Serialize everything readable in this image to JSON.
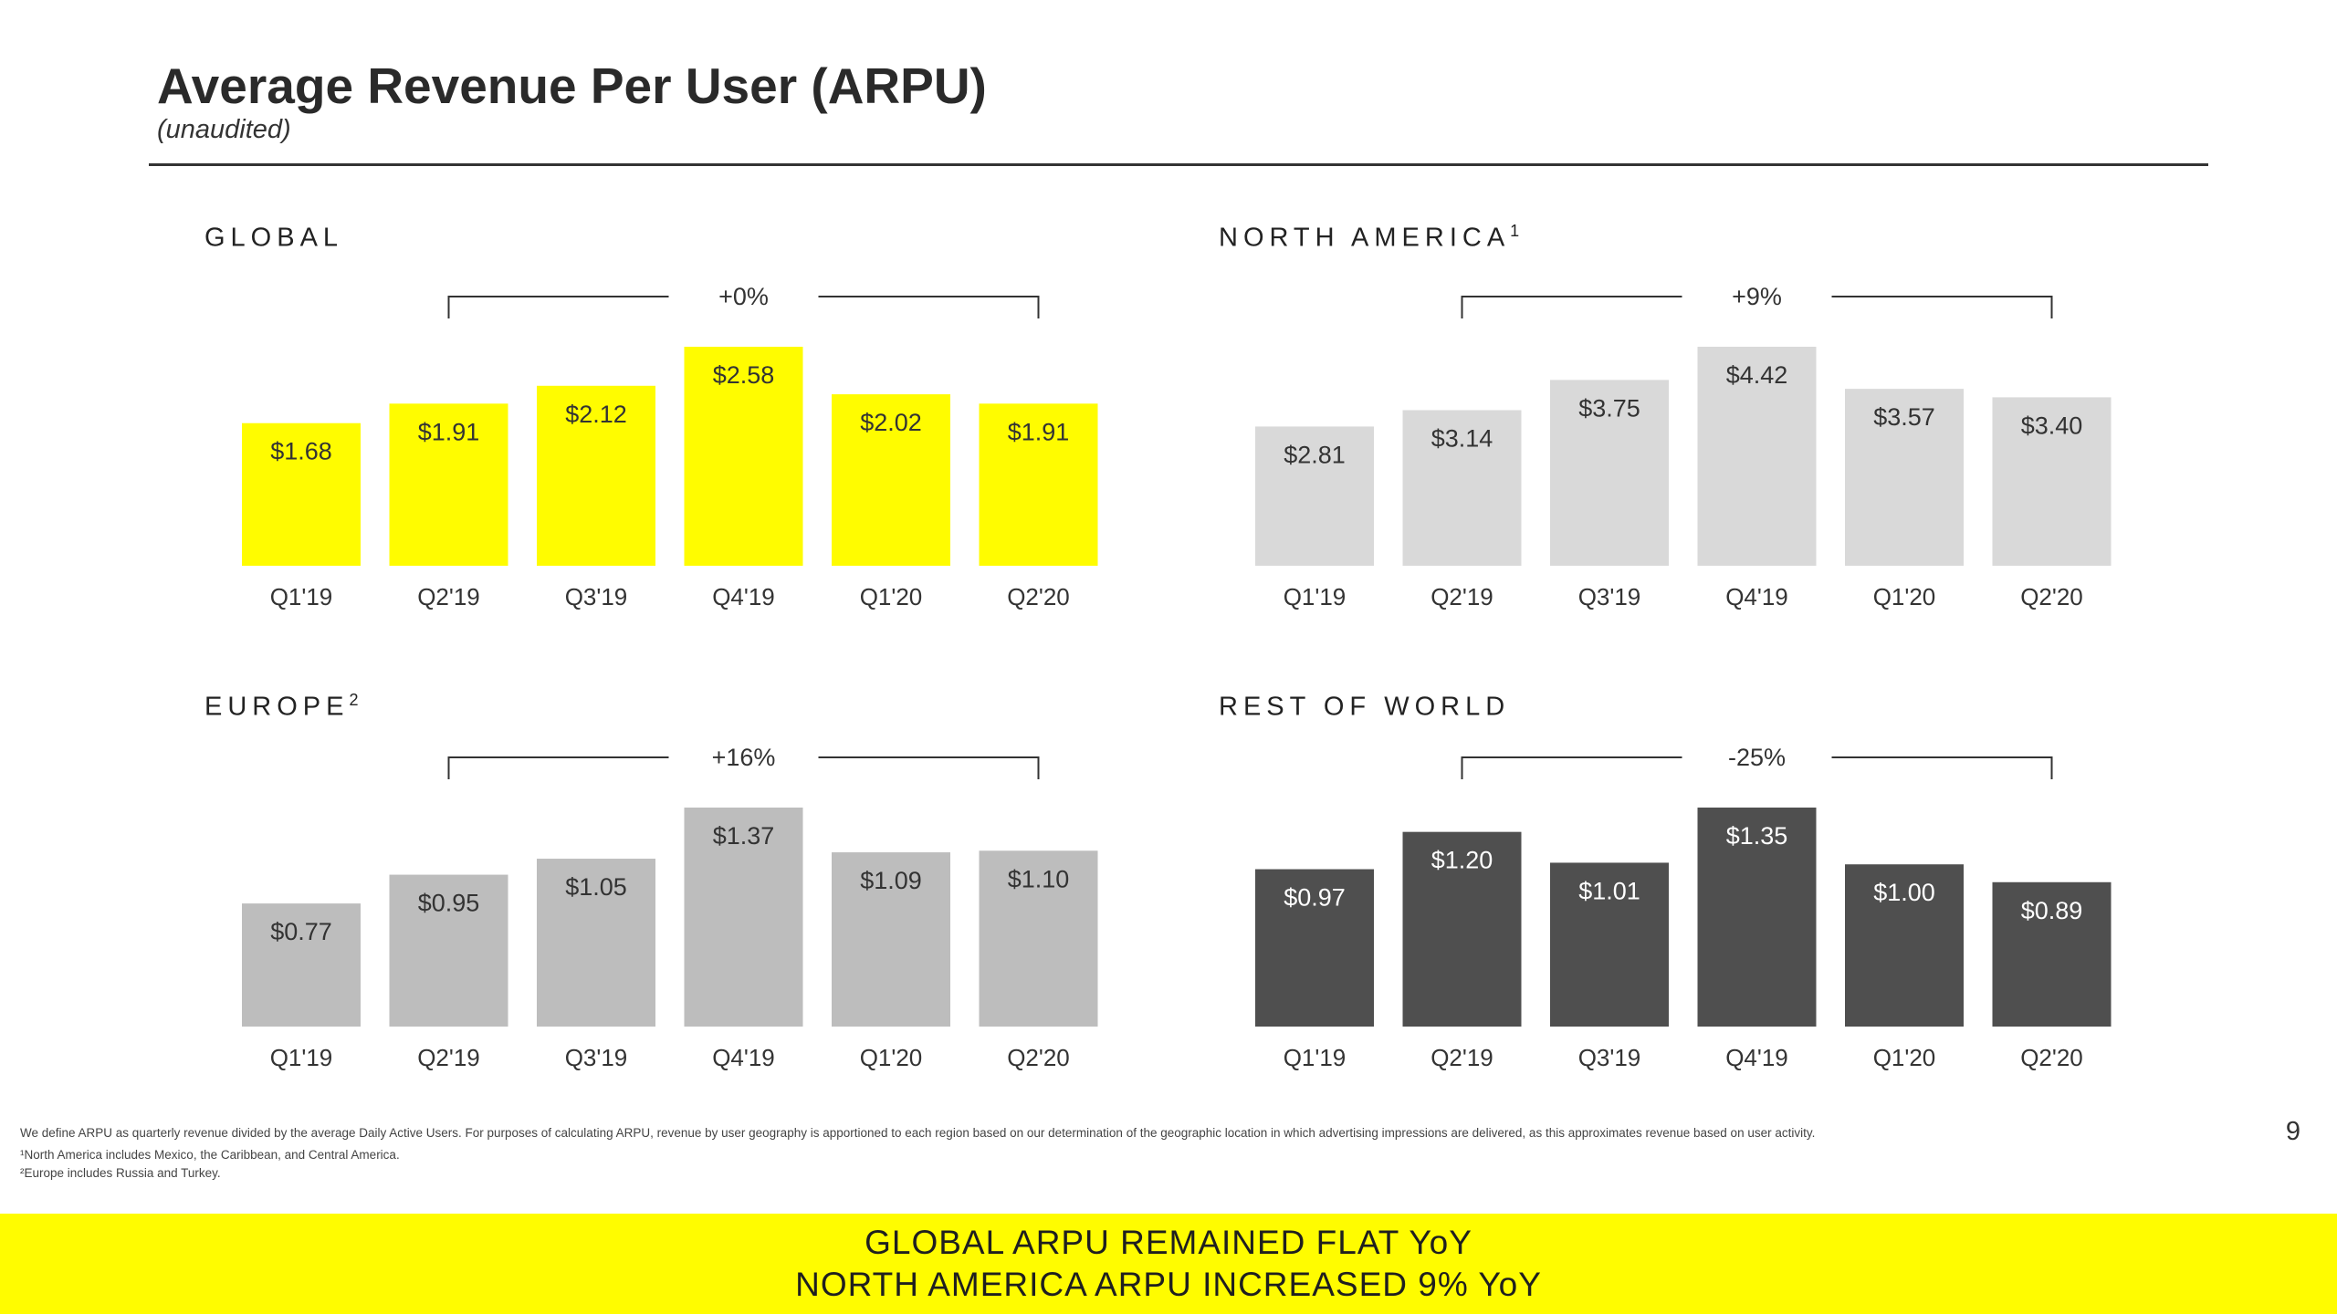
{
  "header": {
    "title": "Average Revenue Per User (ARPU)",
    "subtitle": "(unaudited)"
  },
  "panels": {
    "global": {
      "label": "GLOBAL",
      "sup": ""
    },
    "north_america": {
      "label": "NORTH AMERICA",
      "sup": "1"
    },
    "europe": {
      "label": "EUROPE",
      "sup": "2"
    },
    "rest_of_world": {
      "label": "REST OF WORLD",
      "sup": ""
    }
  },
  "colors": {
    "global": "#FFFC00",
    "north_america": "#D9D9D9",
    "europe": "#BDBDBD",
    "rest_of_world": "#4F4F4F",
    "banner": "#FFFC00"
  },
  "chart_data": [
    {
      "type": "bar",
      "id": "global",
      "title": "GLOBAL",
      "categories": [
        "Q1'19",
        "Q2'19",
        "Q3'19",
        "Q4'19",
        "Q1'20",
        "Q2'20"
      ],
      "values": [
        1.68,
        1.91,
        2.12,
        2.58,
        2.02,
        1.91
      ],
      "data_labels": [
        "$1.68",
        "$1.91",
        "$2.12",
        "$2.58",
        "$2.02",
        "$1.91"
      ],
      "yoy_change": "+0%",
      "color": "#FFFC00",
      "label_color": "#333333"
    },
    {
      "type": "bar",
      "id": "north_america",
      "title": "NORTH AMERICA",
      "categories": [
        "Q1'19",
        "Q2'19",
        "Q3'19",
        "Q4'19",
        "Q1'20",
        "Q2'20"
      ],
      "values": [
        2.81,
        3.14,
        3.75,
        4.42,
        3.57,
        3.4
      ],
      "data_labels": [
        "$2.81",
        "$3.14",
        "$3.75",
        "$4.42",
        "$3.57",
        "$3.40"
      ],
      "yoy_change": "+9%",
      "color": "#D9D9D9",
      "label_color": "#333333"
    },
    {
      "type": "bar",
      "id": "europe",
      "title": "EUROPE",
      "categories": [
        "Q1'19",
        "Q2'19",
        "Q3'19",
        "Q4'19",
        "Q1'20",
        "Q2'20"
      ],
      "values": [
        0.77,
        0.95,
        1.05,
        1.37,
        1.09,
        1.1
      ],
      "data_labels": [
        "$0.77",
        "$0.95",
        "$1.05",
        "$1.37",
        "$1.09",
        "$1.10"
      ],
      "yoy_change": "+16%",
      "color": "#BDBDBD",
      "label_color": "#333333"
    },
    {
      "type": "bar",
      "id": "rest_of_world",
      "title": "REST OF WORLD",
      "categories": [
        "Q1'19",
        "Q2'19",
        "Q3'19",
        "Q4'19",
        "Q1'20",
        "Q2'20"
      ],
      "values": [
        0.97,
        1.2,
        1.01,
        1.35,
        1.0,
        0.89
      ],
      "data_labels": [
        "$0.97",
        "$1.20",
        "$1.01",
        "$1.35",
        "$1.00",
        "$0.89"
      ],
      "yoy_change": "-25%",
      "color": "#4F4F4F",
      "label_color": "#FFFFFF"
    }
  ],
  "footnotes": {
    "definition": "We define ARPU as quarterly revenue divided by the average Daily Active Users. For purposes of calculating ARPU, revenue by user geography is apportioned to each region based on our determination of the geographic location in which advertising impressions are delivered, as this approximates revenue based on user activity.",
    "note1": "¹North America includes Mexico, the Caribbean, and Central America.",
    "note2": "²Europe includes Russia and Turkey."
  },
  "page_number": "9",
  "banner": {
    "line1": "GLOBAL ARPU REMAINED FLAT YoY",
    "line2": "NORTH AMERICA ARPU INCREASED 9% YoY"
  }
}
